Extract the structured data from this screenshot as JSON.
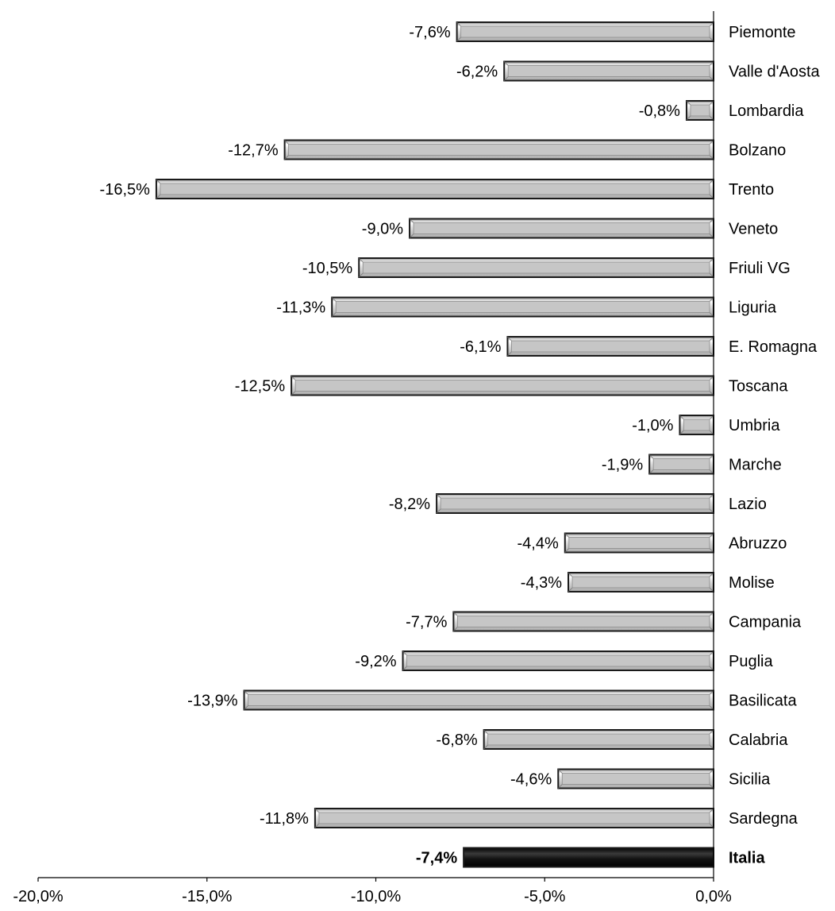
{
  "chart_data": {
    "type": "bar",
    "orientation": "horizontal",
    "categories": [
      "Piemonte",
      "Valle d'Aosta",
      "Lombardia",
      "Bolzano",
      "Trento",
      "Veneto",
      "Friuli VG",
      "Liguria",
      "E. Romagna",
      "Toscana",
      "Umbria",
      "Marche",
      "Lazio",
      "Abruzzo",
      "Molise",
      "Campania",
      "Puglia",
      "Basilicata",
      "Calabria",
      "Sicilia",
      "Sardegna",
      "Italia"
    ],
    "values": [
      -7.6,
      -6.2,
      -0.8,
      -12.7,
      -16.5,
      -9.0,
      -10.5,
      -11.3,
      -6.1,
      -12.5,
      -1.0,
      -1.9,
      -8.2,
      -4.4,
      -4.3,
      -7.7,
      -9.2,
      -13.9,
      -6.8,
      -4.6,
      -11.8,
      -7.4
    ],
    "value_labels": [
      "-7,6%",
      "-6,2%",
      "-0,8%",
      "-12,7%",
      "-16,5%",
      "-9,0%",
      "-10,5%",
      "-11,3%",
      "-6,1%",
      "-12,5%",
      "-1,0%",
      "-1,9%",
      "-8,2%",
      "-4,4%",
      "-4,3%",
      "-7,7%",
      "-9,2%",
      "-13,9%",
      "-6,8%",
      "-4,6%",
      "-11,8%",
      "-7,4%"
    ],
    "highlight_category": "Italia",
    "xlim": [
      -20,
      0
    ],
    "x_ticks": [
      -20,
      -15,
      -10,
      -5,
      0
    ],
    "x_tick_labels": [
      "-20,0%",
      "-15,0%",
      "-10,0%",
      "-5,0%",
      "0,0%"
    ],
    "grid": false,
    "legend": "none",
    "colors": {
      "bar_fill": "#c6c6c6",
      "bar_highlight": "#d9d9d9",
      "bar_edge": "#1a1a1a",
      "total_fill": "#111111",
      "axis": "#000000"
    }
  }
}
